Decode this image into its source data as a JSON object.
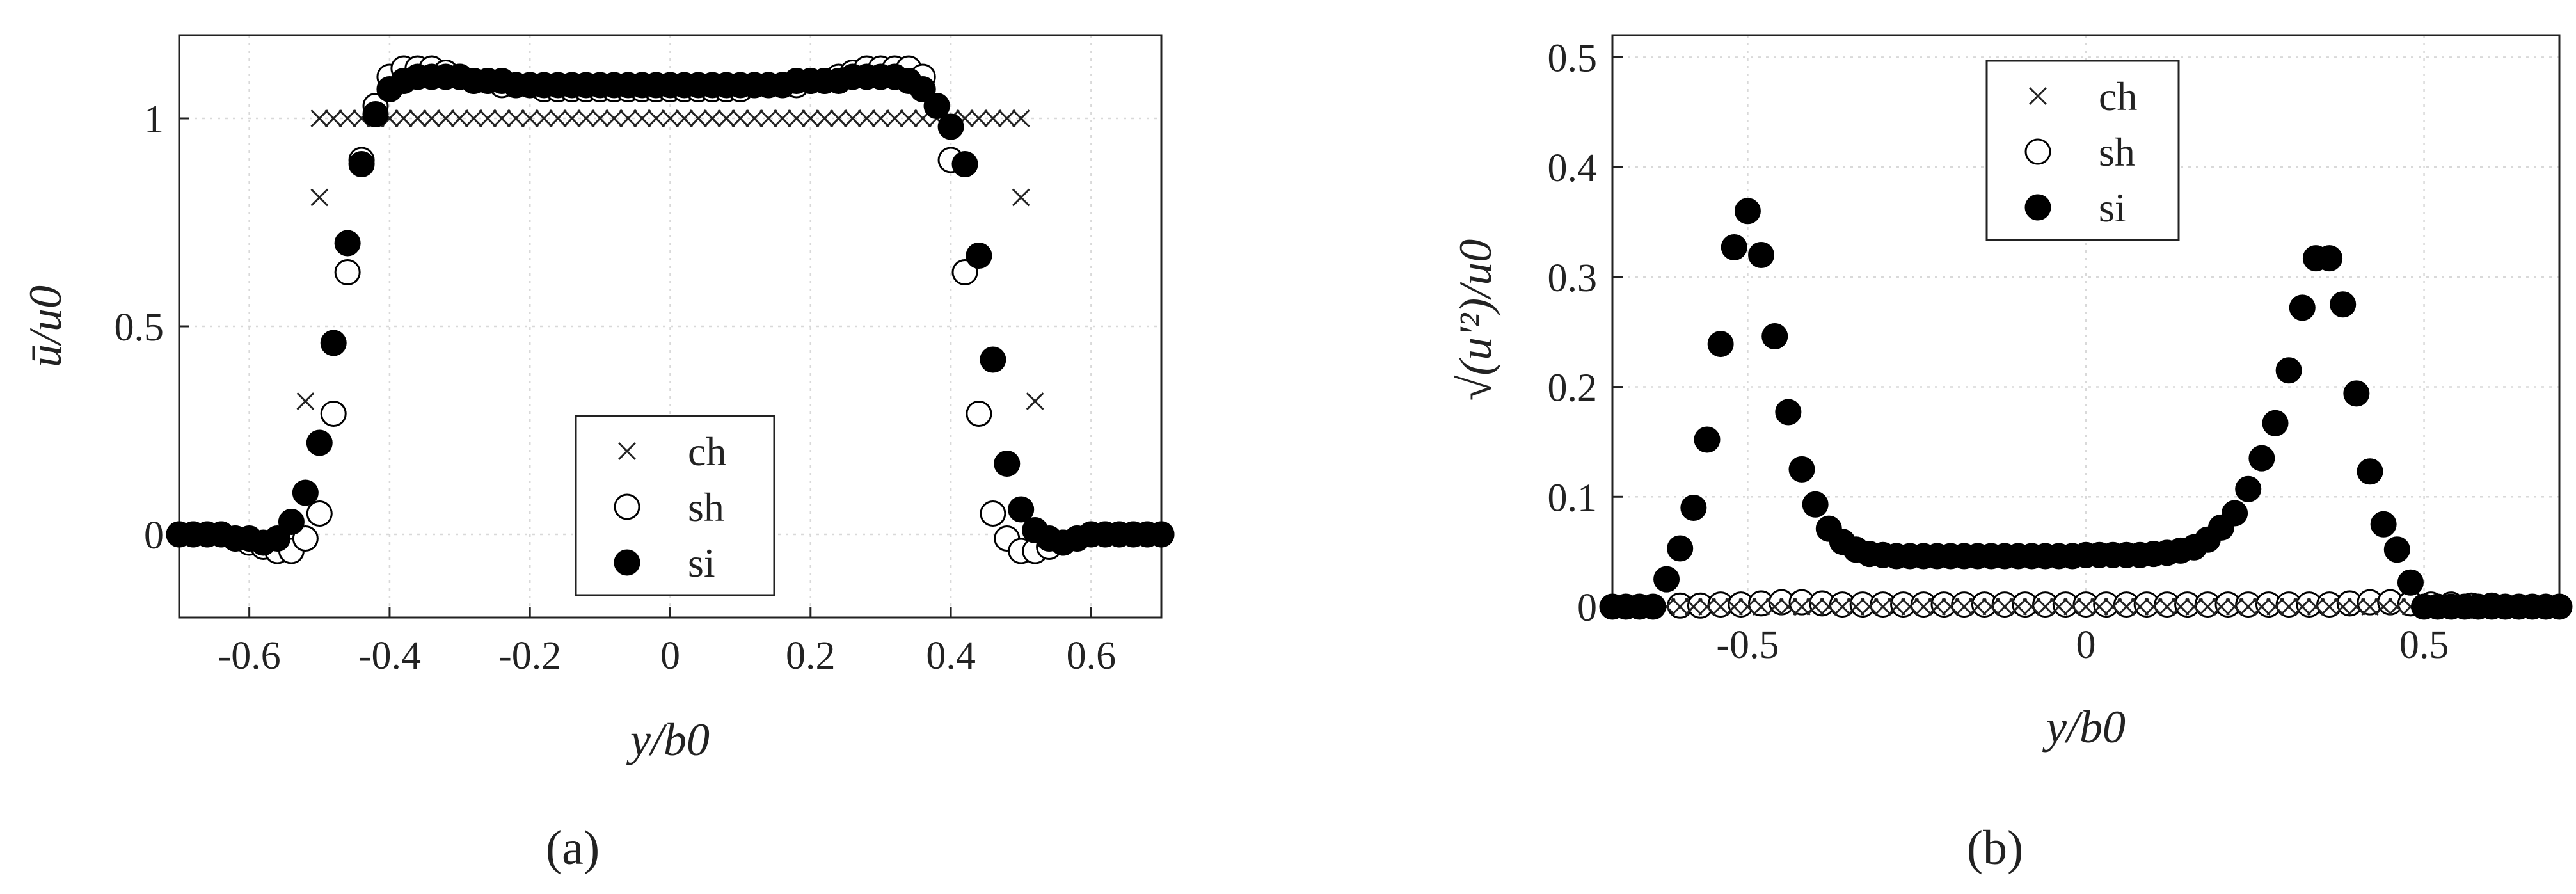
{
  "chart_data": [
    {
      "panel": "(a)",
      "type": "scatter",
      "xlabel": "y/b0",
      "ylabel": "ū/u0",
      "xlim": [
        -0.7,
        0.7
      ],
      "ylim": [
        -0.2,
        1.2
      ],
      "xticks": [
        -0.6,
        -0.4,
        -0.2,
        0,
        0.2,
        0.4,
        0.6
      ],
      "xtick_labels": [
        "-0.6",
        "-0.4",
        "-0.2",
        "0",
        "0.2",
        "0.4",
        "0.6"
      ],
      "yticks": [
        0,
        0.5,
        1
      ],
      "ytick_labels": [
        "0",
        "0.5",
        "1"
      ],
      "grid": true,
      "legend": "lower-center",
      "series": [
        {
          "name": "ch",
          "marker": "cross",
          "x": [
            -0.5,
            -0.48,
            -0.46,
            -0.44,
            -0.42,
            -0.4,
            -0.38,
            -0.36,
            -0.34,
            -0.32,
            -0.3,
            -0.28,
            -0.26,
            -0.24,
            -0.22,
            -0.2,
            -0.18,
            -0.16,
            -0.14,
            -0.12,
            -0.1,
            -0.08,
            -0.06,
            -0.04,
            -0.02,
            0,
            0.02,
            0.04,
            0.06,
            0.08,
            0.1,
            0.12,
            0.14,
            0.16,
            0.18,
            0.2,
            0.22,
            0.24,
            0.26,
            0.28,
            0.3,
            0.32,
            0.34,
            0.36,
            0.38,
            0.4,
            0.42,
            0.44,
            0.46,
            0.48,
            0.5,
            -0.52,
            0.52,
            -0.5,
            0.5
          ],
          "y": [
            1,
            1,
            1,
            1,
            1,
            1,
            1,
            1,
            1,
            1,
            1,
            1,
            1,
            1,
            1,
            1,
            1,
            1,
            1,
            1,
            1,
            1,
            1,
            1,
            1,
            1,
            1,
            1,
            1,
            1,
            1,
            1,
            1,
            1,
            1,
            1,
            1,
            1,
            1,
            1,
            1,
            1,
            1,
            1,
            1,
            1,
            1,
            1,
            1,
            1,
            1,
            0.32,
            0.32,
            0.81,
            0.81
          ]
        },
        {
          "name": "sh",
          "marker": "open-circle",
          "x": [
            -0.7,
            -0.68,
            -0.66,
            -0.64,
            -0.62,
            -0.6,
            -0.58,
            -0.56,
            -0.54,
            -0.52,
            -0.5,
            -0.48,
            -0.46,
            -0.44,
            -0.42,
            -0.4,
            -0.38,
            -0.36,
            -0.34,
            -0.32,
            -0.3,
            -0.28,
            -0.26,
            -0.24,
            -0.22,
            -0.2,
            -0.18,
            -0.16,
            -0.14,
            -0.12,
            -0.1,
            -0.08,
            -0.06,
            -0.04,
            -0.02,
            0,
            0.02,
            0.04,
            0.06,
            0.08,
            0.1,
            0.12,
            0.14,
            0.16,
            0.18,
            0.2,
            0.22,
            0.24,
            0.26,
            0.28,
            0.3,
            0.32,
            0.34,
            0.36,
            0.38,
            0.4,
            0.42,
            0.44,
            0.46,
            0.48,
            0.5,
            0.52,
            0.54,
            0.56,
            0.58,
            0.6,
            0.62,
            0.64,
            0.66,
            0.68,
            0.7
          ],
          "y": [
            0,
            0,
            0,
            0,
            -0.01,
            -0.02,
            -0.03,
            -0.04,
            -0.04,
            -0.01,
            0.05,
            0.29,
            0.63,
            0.9,
            1.03,
            1.1,
            1.12,
            1.12,
            1.12,
            1.11,
            1.1,
            1.09,
            1.09,
            1.08,
            1.08,
            1.08,
            1.07,
            1.07,
            1.07,
            1.07,
            1.07,
            1.07,
            1.07,
            1.07,
            1.07,
            1.07,
            1.07,
            1.07,
            1.07,
            1.07,
            1.07,
            1.08,
            1.08,
            1.08,
            1.08,
            1.09,
            1.09,
            1.1,
            1.11,
            1.12,
            1.12,
            1.12,
            1.12,
            1.1,
            1.03,
            0.9,
            0.63,
            0.29,
            0.05,
            -0.01,
            -0.04,
            -0.04,
            -0.03,
            -0.02,
            -0.01,
            0,
            0,
            0,
            0,
            0,
            0
          ]
        },
        {
          "name": "si",
          "marker": "filled-circle",
          "x": [
            -0.7,
            -0.68,
            -0.66,
            -0.64,
            -0.62,
            -0.6,
            -0.58,
            -0.56,
            -0.54,
            -0.52,
            -0.5,
            -0.48,
            -0.46,
            -0.44,
            -0.42,
            -0.4,
            -0.38,
            -0.36,
            -0.34,
            -0.32,
            -0.3,
            -0.28,
            -0.26,
            -0.24,
            -0.22,
            -0.2,
            -0.18,
            -0.16,
            -0.14,
            -0.12,
            -0.1,
            -0.08,
            -0.06,
            -0.04,
            -0.02,
            0,
            0.02,
            0.04,
            0.06,
            0.08,
            0.1,
            0.12,
            0.14,
            0.16,
            0.18,
            0.2,
            0.22,
            0.24,
            0.26,
            0.28,
            0.3,
            0.32,
            0.34,
            0.36,
            0.38,
            0.4,
            0.42,
            0.44,
            0.46,
            0.48,
            0.5,
            0.52,
            0.54,
            0.56,
            0.58,
            0.6,
            0.62,
            0.64,
            0.66,
            0.68,
            0.7
          ],
          "y": [
            0,
            0,
            0,
            0,
            -0.01,
            -0.01,
            -0.02,
            -0.01,
            0.03,
            0.1,
            0.22,
            0.46,
            0.7,
            0.89,
            1.01,
            1.07,
            1.09,
            1.1,
            1.1,
            1.1,
            1.1,
            1.09,
            1.09,
            1.09,
            1.08,
            1.08,
            1.08,
            1.08,
            1.08,
            1.08,
            1.08,
            1.08,
            1.08,
            1.08,
            1.08,
            1.08,
            1.08,
            1.08,
            1.08,
            1.08,
            1.08,
            1.08,
            1.08,
            1.08,
            1.09,
            1.09,
            1.09,
            1.09,
            1.1,
            1.1,
            1.1,
            1.1,
            1.09,
            1.07,
            1.03,
            0.98,
            0.89,
            0.67,
            0.42,
            0.17,
            0.06,
            0.01,
            -0.01,
            -0.02,
            -0.01,
            0,
            0,
            0,
            0,
            0,
            0
          ]
        }
      ]
    },
    {
      "panel": "(b)",
      "type": "scatter",
      "xlabel": "y/b0",
      "ylabel": "√(u'²)/u0",
      "xlim": [
        -0.7,
        0.7
      ],
      "ylim": [
        0,
        0.52
      ],
      "xticks": [
        -0.5,
        0,
        0.5
      ],
      "xtick_labels": [
        "-0.5",
        "0",
        "0.5"
      ],
      "yticks": [
        0,
        0.1,
        0.2,
        0.3,
        0.4,
        0.5
      ],
      "ytick_labels": [
        "0",
        "0.1",
        "0.2",
        "0.3",
        "0.4",
        "0.5"
      ],
      "grid": true,
      "legend": "top-center",
      "series": [
        {
          "name": "ch",
          "marker": "cross",
          "x": [
            -0.68,
            -0.66,
            -0.64,
            -0.62,
            -0.6,
            -0.58,
            -0.56,
            -0.54,
            -0.52,
            -0.5,
            -0.48,
            -0.46,
            -0.44,
            -0.42,
            -0.4,
            -0.38,
            -0.36,
            -0.34,
            -0.32,
            -0.3,
            -0.28,
            -0.26,
            -0.24,
            -0.22,
            -0.2,
            -0.18,
            -0.16,
            -0.14,
            -0.12,
            -0.1,
            -0.08,
            -0.06,
            -0.04,
            -0.02,
            0,
            0.02,
            0.04,
            0.06,
            0.08,
            0.1,
            0.12,
            0.14,
            0.16,
            0.18,
            0.2,
            0.22,
            0.24,
            0.26,
            0.28,
            0.3,
            0.32,
            0.34,
            0.36,
            0.38,
            0.4,
            0.42,
            0.44,
            0.46,
            0.48,
            0.5,
            0.52,
            0.54,
            0.56,
            0.58,
            0.6,
            0.62,
            0.64,
            0.66,
            0.68
          ],
          "y": [
            0,
            0,
            0,
            0,
            0,
            0,
            0,
            0,
            0,
            0,
            0,
            0,
            0,
            0,
            0,
            0,
            0,
            0,
            0,
            0,
            0,
            0,
            0,
            0,
            0,
            0,
            0,
            0,
            0,
            0,
            0,
            0,
            0,
            0,
            0,
            0,
            0,
            0,
            0,
            0,
            0,
            0,
            0,
            0,
            0,
            0,
            0,
            0,
            0,
            0,
            0,
            0,
            0,
            0,
            0,
            0,
            0,
            0,
            0,
            0,
            0,
            0,
            0,
            0,
            0,
            0,
            0,
            0,
            0
          ]
        },
        {
          "name": "sh",
          "marker": "open-circle",
          "x": [
            -0.6,
            -0.57,
            -0.54,
            -0.51,
            -0.48,
            -0.45,
            -0.42,
            -0.39,
            -0.36,
            -0.33,
            -0.3,
            -0.27,
            -0.24,
            -0.21,
            -0.18,
            -0.15,
            -0.12,
            -0.09,
            -0.06,
            -0.03,
            0,
            0.03,
            0.06,
            0.09,
            0.12,
            0.15,
            0.18,
            0.21,
            0.24,
            0.27,
            0.3,
            0.33,
            0.36,
            0.39,
            0.42,
            0.45,
            0.48,
            0.51,
            0.54,
            0.57,
            0.6
          ],
          "y": [
            0.001,
            0.001,
            0.002,
            0.002,
            0.003,
            0.004,
            0.004,
            0.003,
            0.002,
            0.002,
            0.002,
            0.002,
            0.002,
            0.002,
            0.002,
            0.002,
            0.002,
            0.002,
            0.002,
            0.002,
            0.002,
            0.002,
            0.002,
            0.002,
            0.002,
            0.002,
            0.002,
            0.002,
            0.002,
            0.002,
            0.002,
            0.002,
            0.002,
            0.003,
            0.004,
            0.004,
            0.003,
            0.002,
            0.002,
            0.001,
            0.001
          ]
        },
        {
          "name": "si",
          "marker": "filled-circle",
          "x": [
            -0.7,
            -0.68,
            -0.66,
            -0.64,
            -0.62,
            -0.6,
            -0.58,
            -0.56,
            -0.54,
            -0.52,
            -0.5,
            -0.48,
            -0.46,
            -0.44,
            -0.42,
            -0.4,
            -0.38,
            -0.36,
            -0.34,
            -0.32,
            -0.3,
            -0.28,
            -0.26,
            -0.24,
            -0.22,
            -0.2,
            -0.18,
            -0.16,
            -0.14,
            -0.12,
            -0.1,
            -0.08,
            -0.06,
            -0.04,
            -0.02,
            0,
            0.02,
            0.04,
            0.06,
            0.08,
            0.1,
            0.12,
            0.14,
            0.16,
            0.18,
            0.2,
            0.22,
            0.24,
            0.26,
            0.28,
            0.3,
            0.32,
            0.34,
            0.36,
            0.38,
            0.4,
            0.42,
            0.44,
            0.46,
            0.48,
            0.5,
            0.52,
            0.54,
            0.56,
            0.58,
            0.6,
            0.62,
            0.64,
            0.66,
            0.68,
            0.7
          ],
          "y": [
            0,
            0,
            0,
            0,
            0.025,
            0.053,
            0.09,
            0.152,
            0.239,
            0.327,
            0.36,
            0.32,
            0.246,
            0.177,
            0.125,
            0.093,
            0.071,
            0.059,
            0.052,
            0.048,
            0.047,
            0.046,
            0.046,
            0.046,
            0.046,
            0.046,
            0.046,
            0.046,
            0.046,
            0.046,
            0.046,
            0.046,
            0.046,
            0.046,
            0.046,
            0.047,
            0.047,
            0.047,
            0.047,
            0.047,
            0.048,
            0.049,
            0.051,
            0.054,
            0.061,
            0.072,
            0.085,
            0.107,
            0.135,
            0.167,
            0.215,
            0.272,
            0.317,
            0.317,
            0.275,
            0.194,
            0.123,
            0.075,
            0.052,
            0.022,
            0,
            0,
            0,
            0,
            0,
            0,
            0,
            0,
            0,
            0,
            0
          ]
        }
      ]
    }
  ]
}
